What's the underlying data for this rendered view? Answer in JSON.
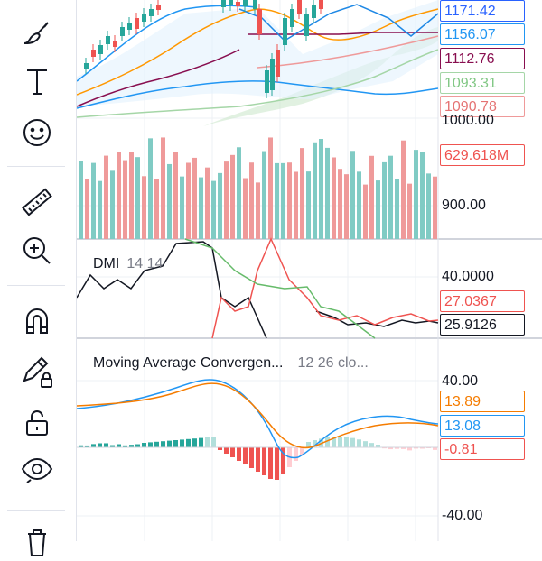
{
  "toolbar": {
    "tools": [
      "brush-tool",
      "text-tool",
      "emoji-tool",
      "ruler-tool",
      "zoom-in-tool",
      "magnet-tool",
      "lock-drawing-tool",
      "lock-tool",
      "eye-tool",
      "trash-tool"
    ]
  },
  "price_pane": {
    "axis_labels": {
      "l1171": "1171.42",
      "l1156": "1156.07",
      "l1112": "1112.76",
      "l1093": "1093.31",
      "l1090": "1090.78",
      "l1000": "1000.00",
      "l629": "629.618M",
      "l900": "900.00"
    },
    "colors": {
      "l1171": "#2962ff",
      "l1156": "#2196f3",
      "l1112": "#880e4f",
      "l1093": "#a5d6a7",
      "l1090": "#ef9a9a",
      "l629": "#ef5350"
    }
  },
  "dmi_pane": {
    "title": "DMI",
    "params": "14 14",
    "axis_labels": {
      "top": "40.0000",
      "v1": "27.0367",
      "v2": "25.9126"
    },
    "colors": {
      "v1": "#ef5350",
      "v2": "#131722"
    }
  },
  "macd_pane": {
    "title": "Moving Average Convergen...",
    "params": "12 26 clo...",
    "axis_labels": {
      "top": "40.00",
      "v1": "13.89",
      "v2": "13.08",
      "v3": "-0.81",
      "bottom": "-40.00"
    },
    "colors": {
      "v1": "#f57c00",
      "v2": "#2196f3",
      "v3": "#ef5350"
    }
  }
}
